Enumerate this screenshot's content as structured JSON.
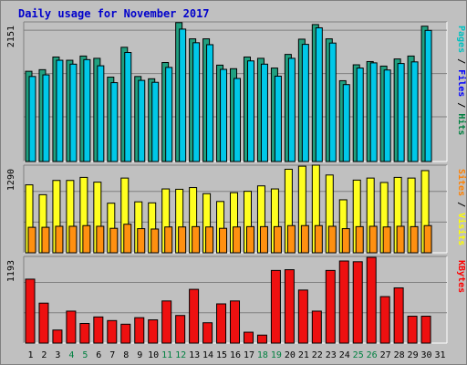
{
  "title": "Daily usage for November 2017",
  "colors": {
    "pages": "#00c0c0",
    "files": "#0000ff",
    "hits": "#008040",
    "sites": "#ff8000",
    "visits": "#ffff00",
    "kbytes": "#ff0000",
    "weekend_day": "#008040",
    "weekday": "#000000",
    "hits_bar": "#20a080",
    "files_bar": "#00c8e8",
    "visits_bar": "#ffff20",
    "sites_bar": "#ff9010",
    "kbytes_bar": "#ee1010"
  },
  "chart_data": [
    {
      "type": "bar",
      "panel": "top",
      "ymax_label": "2151",
      "ylim": [
        0,
        2151
      ],
      "legend": [
        "Pages",
        "Files",
        "Hits"
      ],
      "legend_separator": "/",
      "categories": [
        "1",
        "2",
        "3",
        "4",
        "5",
        "6",
        "7",
        "8",
        "9",
        "10",
        "11",
        "12",
        "13",
        "14",
        "15",
        "16",
        "17",
        "18",
        "19",
        "20",
        "21",
        "22",
        "23",
        "24",
        "25",
        "26",
        "27",
        "28",
        "29",
        "30",
        "31"
      ],
      "weekend_days": [
        "4",
        "5",
        "11",
        "12",
        "18",
        "19",
        "25",
        "26"
      ],
      "series": [
        {
          "name": "Hits",
          "values": [
            1390,
            1415,
            1610,
            1560,
            1625,
            1590,
            1300,
            1760,
            1310,
            1275,
            1525,
            2140,
            1890,
            1890,
            1485,
            1430,
            1610,
            1590,
            1440,
            1650,
            1885,
            2110,
            1890,
            1245,
            1490,
            1540,
            1470,
            1580,
            1625,
            2085,
            null
          ]
        },
        {
          "name": "Files",
          "values": [
            1310,
            1335,
            1560,
            1500,
            1570,
            1475,
            1215,
            1680,
            1250,
            1220,
            1450,
            2040,
            1830,
            1800,
            1420,
            1280,
            1550,
            1500,
            1315,
            1590,
            1805,
            2060,
            1825,
            1185,
            1440,
            1520,
            1410,
            1510,
            1535,
            2020,
            null
          ]
        },
        {
          "name": "Pages",
          "values": [
            null,
            null,
            null,
            null,
            null,
            null,
            null,
            null,
            null,
            null,
            null,
            null,
            null,
            null,
            null,
            null,
            null,
            null,
            null,
            null,
            null,
            null,
            null,
            null,
            null,
            null,
            null,
            null,
            null,
            null,
            null
          ]
        }
      ]
    },
    {
      "type": "bar",
      "panel": "middle",
      "ymax_label": "1290",
      "ylim": [
        0,
        1290
      ],
      "legend": [
        "Sites",
        "Visits"
      ],
      "legend_separator": "/",
      "categories": [
        "1",
        "2",
        "3",
        "4",
        "5",
        "6",
        "7",
        "8",
        "9",
        "10",
        "11",
        "12",
        "13",
        "14",
        "15",
        "16",
        "17",
        "18",
        "19",
        "20",
        "21",
        "22",
        "23",
        "24",
        "25",
        "26",
        "27",
        "28",
        "29",
        "30",
        "31"
      ],
      "series": [
        {
          "name": "Visits",
          "values": [
            1000,
            855,
            1065,
            1065,
            1110,
            1040,
            730,
            1100,
            750,
            735,
            940,
            935,
            960,
            870,
            755,
            885,
            905,
            985,
            940,
            1230,
            1275,
            1290,
            1145,
            780,
            1070,
            1100,
            1035,
            1110,
            1100,
            1210,
            null
          ]
        },
        {
          "name": "Sites",
          "values": [
            375,
            375,
            390,
            390,
            400,
            390,
            360,
            420,
            355,
            350,
            380,
            380,
            385,
            380,
            360,
            380,
            385,
            385,
            385,
            400,
            400,
            400,
            390,
            355,
            385,
            390,
            380,
            390,
            385,
            400,
            null
          ]
        }
      ]
    },
    {
      "type": "bar",
      "panel": "bottom",
      "ymax_label": "1193",
      "ylim": [
        0,
        1193
      ],
      "legend": [
        "KBytes"
      ],
      "categories": [
        "1",
        "2",
        "3",
        "4",
        "5",
        "6",
        "7",
        "8",
        "9",
        "10",
        "11",
        "12",
        "13",
        "14",
        "15",
        "16",
        "17",
        "18",
        "19",
        "20",
        "21",
        "22",
        "23",
        "24",
        "25",
        "26",
        "27",
        "28",
        "29",
        "30",
        "31"
      ],
      "series": [
        {
          "name": "KBytes",
          "values": [
            880,
            550,
            180,
            440,
            270,
            360,
            310,
            260,
            350,
            320,
            580,
            380,
            740,
            280,
            540,
            580,
            150,
            110,
            1000,
            1010,
            730,
            440,
            1000,
            1130,
            1120,
            1180,
            640,
            760,
            370,
            370,
            null
          ]
        }
      ]
    }
  ]
}
